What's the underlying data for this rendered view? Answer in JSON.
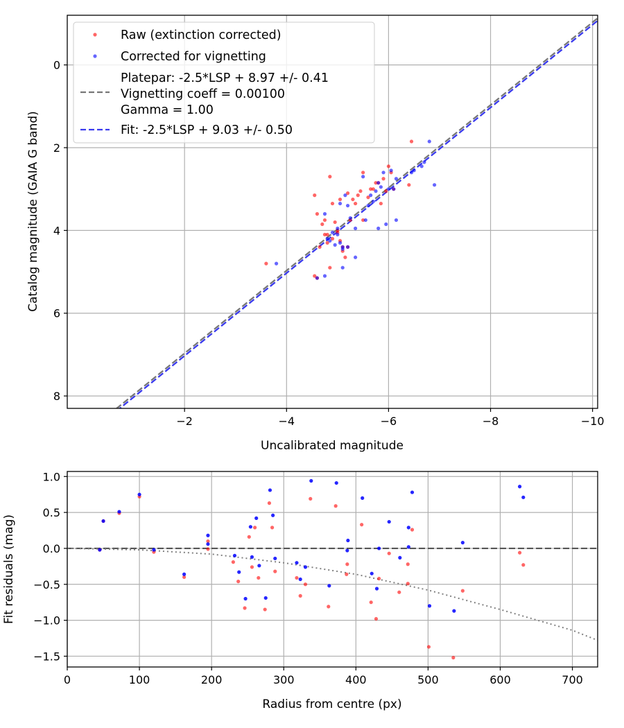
{
  "chart_data": [
    {
      "type": "scatter",
      "xlabel": "Uncalibrated magnitude",
      "ylabel": "Catalog magnitude (GAIA G band)",
      "xlim": [
        0.3,
        -10.1
      ],
      "ylim": [
        8.3,
        -1.2
      ],
      "x_inverted": true,
      "y_inverted": true,
      "xticks": [
        -2,
        -4,
        -6,
        -8,
        -10
      ],
      "xtick_labels": [
        "−2",
        "−4",
        "−6",
        "−8",
        "−10"
      ],
      "yticks": [
        0,
        2,
        4,
        6,
        8
      ],
      "ytick_labels": [
        "0",
        "2",
        "4",
        "6",
        "8"
      ],
      "grid": true,
      "legend_position": "upper-left",
      "series": [
        {
          "name": "Raw (extinction corrected)",
          "kind": "scatter",
          "color": "#ff0000",
          "points": [
            [
              -3.6,
              4.8
            ],
            [
              -4.55,
              5.1
            ],
            [
              -4.6,
              5.15
            ],
            [
              -4.55,
              3.15
            ],
            [
              -4.6,
              3.6
            ],
            [
              -4.65,
              4.4
            ],
            [
              -4.7,
              3.85
            ],
            [
              -4.75,
              4.1
            ],
            [
              -4.75,
              3.75
            ],
            [
              -4.8,
              4.1
            ],
            [
              -4.8,
              4.3
            ],
            [
              -4.85,
              4.9
            ],
            [
              -4.85,
              2.7
            ],
            [
              -4.9,
              3.35
            ],
            [
              -4.9,
              4.2
            ],
            [
              -4.95,
              3.8
            ],
            [
              -5.0,
              4.0
            ],
            [
              -5.0,
              4.05
            ],
            [
              -5.05,
              3.25
            ],
            [
              -5.05,
              4.25
            ],
            [
              -5.1,
              4.4
            ],
            [
              -5.1,
              4.5
            ],
            [
              -5.15,
              4.65
            ],
            [
              -5.2,
              4.4
            ],
            [
              -5.2,
              3.1
            ],
            [
              -5.25,
              3.75
            ],
            [
              -5.3,
              3.25
            ],
            [
              -5.35,
              3.35
            ],
            [
              -5.4,
              3.15
            ],
            [
              -5.45,
              3.05
            ],
            [
              -5.5,
              2.6
            ],
            [
              -5.5,
              3.75
            ],
            [
              -5.6,
              3.2
            ],
            [
              -5.65,
              3.0
            ],
            [
              -5.7,
              3.0
            ],
            [
              -5.75,
              2.85
            ],
            [
              -5.8,
              2.85
            ],
            [
              -5.85,
              3.35
            ],
            [
              -5.9,
              2.75
            ],
            [
              -5.95,
              3.05
            ],
            [
              -6.0,
              2.45
            ],
            [
              -6.05,
              2.6
            ],
            [
              -6.1,
              3.0
            ],
            [
              -6.4,
              2.9
            ],
            [
              -6.45,
              1.85
            ]
          ]
        },
        {
          "name": "Corrected for vignetting",
          "kind": "scatter",
          "color": "#0000ff",
          "points": [
            [
              -3.8,
              4.8
            ],
            [
              -4.6,
              5.15
            ],
            [
              -4.75,
              5.1
            ],
            [
              -4.75,
              3.6
            ],
            [
              -4.8,
              4.2
            ],
            [
              -4.85,
              4.25
            ],
            [
              -4.9,
              4.05
            ],
            [
              -4.95,
              4.35
            ],
            [
              -5.0,
              3.95
            ],
            [
              -5.0,
              4.1
            ],
            [
              -5.05,
              3.35
            ],
            [
              -5.05,
              4.3
            ],
            [
              -5.1,
              4.4
            ],
            [
              -5.1,
              4.45
            ],
            [
              -5.1,
              4.9
            ],
            [
              -5.15,
              3.15
            ],
            [
              -5.2,
              4.4
            ],
            [
              -5.2,
              3.4
            ],
            [
              -5.25,
              3.7
            ],
            [
              -5.35,
              4.65
            ],
            [
              -5.35,
              3.95
            ],
            [
              -5.5,
              2.7
            ],
            [
              -5.55,
              3.75
            ],
            [
              -5.6,
              3.4
            ],
            [
              -5.65,
              3.15
            ],
            [
              -5.7,
              3.3
            ],
            [
              -5.75,
              3.05
            ],
            [
              -5.8,
              2.85
            ],
            [
              -5.8,
              3.95
            ],
            [
              -5.85,
              2.95
            ],
            [
              -5.9,
              2.6
            ],
            [
              -5.95,
              3.85
            ],
            [
              -6.0,
              3.0
            ],
            [
              -6.05,
              2.55
            ],
            [
              -6.1,
              3.0
            ],
            [
              -6.15,
              3.75
            ],
            [
              -6.15,
              2.75
            ],
            [
              -6.45,
              2.6
            ],
            [
              -6.5,
              2.55
            ],
            [
              -6.65,
              2.45
            ],
            [
              -6.7,
              2.35
            ],
            [
              -6.8,
              1.85
            ],
            [
              -6.9,
              2.9
            ]
          ]
        },
        {
          "name": "Platepar: -2.5*LSP + 8.97 +/- 0.41\nVignetting coeff = 0.00100\nGamma = 1.00",
          "kind": "dashed-line",
          "color": "#777777",
          "slope": 1.0,
          "intercept": 8.97
        },
        {
          "name": "Fit: -2.5*LSP + 9.03 +/- 0.50",
          "kind": "dashed-line",
          "color": "#3a3aee",
          "slope": 1.0,
          "intercept": 9.03
        }
      ]
    },
    {
      "type": "scatter",
      "xlabel": "Radius from centre (px)",
      "ylabel": "Fit residuals (mag)",
      "xlim": [
        0,
        735
      ],
      "ylim": [
        -1.65,
        1.07
      ],
      "xticks": [
        0,
        100,
        200,
        300,
        400,
        500,
        600,
        700
      ],
      "xtick_labels": [
        "0",
        "100",
        "200",
        "300",
        "400",
        "500",
        "600",
        "700"
      ],
      "yticks": [
        1.0,
        0.5,
        0.0,
        -0.5,
        -1.0,
        -1.5
      ],
      "ytick_labels": [
        "1.0",
        "0.5",
        "0.0",
        "−0.5",
        "−1.0",
        "−1.5"
      ],
      "grid": true,
      "zero_line": 0.0,
      "vignetting_curve_points": [
        [
          0,
          0.0
        ],
        [
          100,
          -0.02
        ],
        [
          200,
          -0.08
        ],
        [
          300,
          -0.2
        ],
        [
          400,
          -0.36
        ],
        [
          500,
          -0.58
        ],
        [
          600,
          -0.85
        ],
        [
          700,
          -1.14
        ],
        [
          735,
          -1.28
        ]
      ],
      "series": [
        {
          "name": "Raw (extinction corrected)",
          "color": "#ff0000",
          "points": [
            [
              45,
              -0.02
            ],
            [
              50,
              0.38
            ],
            [
              72,
              0.49
            ],
            [
              100,
              0.72
            ],
            [
              120,
              -0.05
            ],
            [
              162,
              -0.4
            ],
            [
              195,
              0.1
            ],
            [
              195,
              -0.01
            ],
            [
              230,
              -0.19
            ],
            [
              237,
              -0.46
            ],
            [
              246,
              -0.83
            ],
            [
              252,
              0.16
            ],
            [
              256,
              -0.26
            ],
            [
              260,
              0.29
            ],
            [
              265,
              -0.41
            ],
            [
              274,
              -0.85
            ],
            [
              280,
              0.63
            ],
            [
              284,
              0.29
            ],
            [
              288,
              -0.32
            ],
            [
              318,
              -0.41
            ],
            [
              323,
              -0.66
            ],
            [
              330,
              -0.5
            ],
            [
              337,
              0.69
            ],
            [
              362,
              -0.81
            ],
            [
              372,
              0.59
            ],
            [
              387,
              -0.36
            ],
            [
              388,
              -0.22
            ],
            [
              408,
              0.33
            ],
            [
              421,
              -0.75
            ],
            [
              428,
              -0.98
            ],
            [
              432,
              -0.42
            ],
            [
              446,
              -0.07
            ],
            [
              460,
              -0.61
            ],
            [
              472,
              -0.22
            ],
            [
              472,
              -0.49
            ],
            [
              478,
              0.26
            ],
            [
              501,
              -1.37
            ],
            [
              535,
              -1.52
            ],
            [
              548,
              -0.59
            ],
            [
              627,
              -0.06
            ],
            [
              632,
              -0.23
            ]
          ]
        },
        {
          "name": "Corrected for vignetting",
          "color": "#0000ff",
          "points": [
            [
              45,
              -0.02
            ],
            [
              50,
              0.38
            ],
            [
              72,
              0.51
            ],
            [
              100,
              0.75
            ],
            [
              120,
              -0.02
            ],
            [
              162,
              -0.36
            ],
            [
              195,
              0.18
            ],
            [
              195,
              0.06
            ],
            [
              232,
              -0.1
            ],
            [
              238,
              -0.33
            ],
            [
              247,
              -0.7
            ],
            [
              254,
              0.3
            ],
            [
              256,
              -0.12
            ],
            [
              262,
              0.42
            ],
            [
              266,
              -0.24
            ],
            [
              275,
              -0.69
            ],
            [
              281,
              0.81
            ],
            [
              285,
              0.46
            ],
            [
              288,
              -0.14
            ],
            [
              318,
              -0.2
            ],
            [
              323,
              -0.43
            ],
            [
              330,
              -0.26
            ],
            [
              338,
              0.94
            ],
            [
              363,
              -0.52
            ],
            [
              373,
              0.91
            ],
            [
              388,
              -0.03
            ],
            [
              389,
              0.11
            ],
            [
              409,
              0.7
            ],
            [
              422,
              -0.35
            ],
            [
              429,
              -0.56
            ],
            [
              432,
              0.0
            ],
            [
              446,
              0.37
            ],
            [
              461,
              -0.13
            ],
            [
              473,
              0.02
            ],
            [
              473,
              0.29
            ],
            [
              478,
              0.78
            ],
            [
              502,
              -0.8
            ],
            [
              536,
              -0.87
            ],
            [
              548,
              0.08
            ],
            [
              627,
              0.86
            ],
            [
              632,
              0.71
            ]
          ]
        }
      ]
    }
  ]
}
